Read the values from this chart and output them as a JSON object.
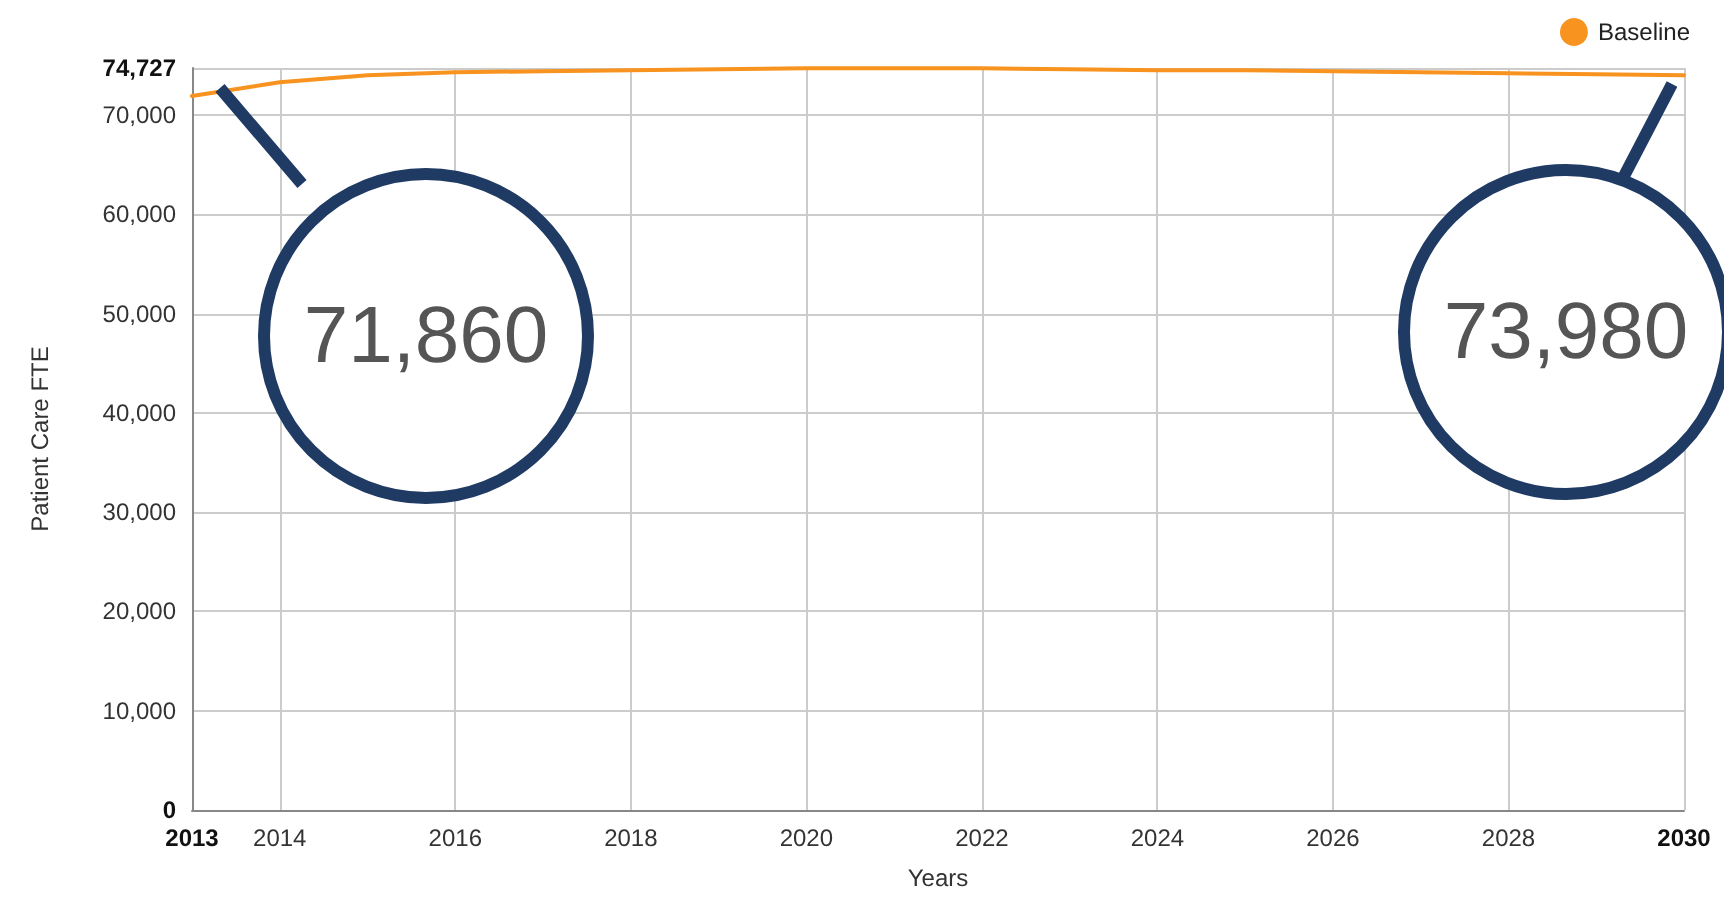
{
  "chart_data": {
    "type": "line",
    "xlabel": "Years",
    "ylabel": "Patient Care FTE",
    "x": [
      2013,
      2014,
      2015,
      2016,
      2017,
      2018,
      2019,
      2020,
      2021,
      2022,
      2023,
      2024,
      2025,
      2026,
      2027,
      2028,
      2029,
      2030
    ],
    "series": [
      {
        "name": "Baseline",
        "color": "#f7931e",
        "values": [
          71900,
          73300,
          74000,
          74300,
          74400,
          74500,
          74600,
          74700,
          74700,
          74700,
          74600,
          74500,
          74500,
          74400,
          74300,
          74200,
          74100,
          74000
        ]
      }
    ],
    "xlim": [
      2013,
      2030
    ],
    "xticks": [
      2013,
      2014,
      2016,
      2018,
      2020,
      2022,
      2024,
      2026,
      2028,
      2030
    ],
    "ylim": [
      0,
      74727
    ],
    "yticks": [
      0,
      {
        "value": 10000,
        "label": "10,000"
      },
      {
        "value": 20000,
        "label": "20,000"
      },
      {
        "value": 30000,
        "label": "30,000"
      },
      {
        "value": 40000,
        "label": "40,000"
      },
      {
        "value": 50000,
        "label": "50,000"
      },
      {
        "value": 60000,
        "label": "60,000"
      },
      {
        "value": 70000,
        "label": "70,000"
      },
      {
        "value": 74727,
        "label": "74,727"
      }
    ],
    "grid": true,
    "legend": "top right",
    "marker": "none",
    "line_style": "solid",
    "annotations": [
      "71,860",
      "73,980"
    ]
  }
}
